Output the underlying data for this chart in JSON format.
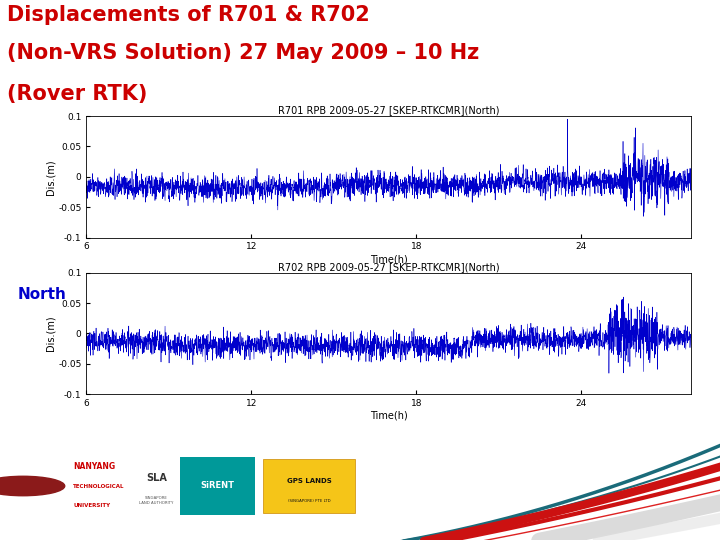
{
  "title_line1": "Displacements of R701 & R702",
  "title_line2": "(Non-VRS Solution) 27 May 2009 – 10 Hz",
  "title_line3": "(Rover RTK)",
  "title_color": "#cc0000",
  "title_fontsize": 15,
  "plot1_title": "R701 RPB 2009-05-27 [SKEP-RTKCMR](North)",
  "plot2_title": "R702 RPB 2009-05-27 [SKEP-RTKCMR](North)",
  "xlabel": "Time(h)",
  "ylabel": "Dis.(m)",
  "xlim": [
    6,
    28
  ],
  "ylim": [
    -0.1,
    0.1
  ],
  "xticks": [
    6,
    12,
    18,
    24
  ],
  "yticks": [
    -0.1,
    -0.05,
    0,
    0.05,
    0.1
  ],
  "line_color": "#0000cc",
  "north_label_color": "#0000cc",
  "north_label_fontsize": 11,
  "bg_color": "#ffffff",
  "n_points": 3000,
  "seed1": 42,
  "seed2": 123,
  "noise_std1": 0.01,
  "noise_std2": 0.01,
  "drift1": -0.015,
  "drift2": -0.015
}
